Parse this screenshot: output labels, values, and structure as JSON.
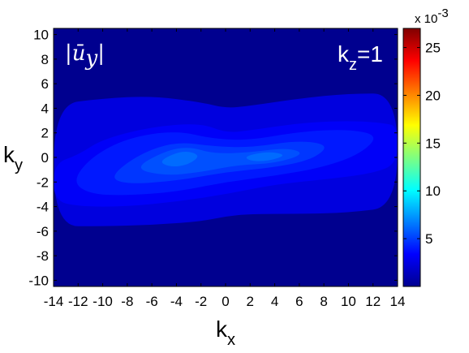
{
  "chart_data": {
    "type": "heatmap",
    "title": "",
    "annotation": {
      "field_main": "ū",
      "field_sub": "y",
      "kz_main": "k",
      "kz_sub": "z",
      "kz_value": "=1"
    },
    "xlabel": {
      "main": "k",
      "sub": "x"
    },
    "ylabel": {
      "main": "k",
      "sub": "y"
    },
    "xlim": [
      -14,
      14
    ],
    "ylim": [
      -10.5,
      10.5
    ],
    "x_ticks": [
      -14,
      -12,
      -10,
      -8,
      -6,
      -4,
      -2,
      0,
      2,
      4,
      6,
      8,
      10,
      12,
      14
    ],
    "x_tick_labels": [
      "-14",
      "-12",
      "-10",
      "-8",
      "-6",
      "-4",
      "-2",
      "0",
      "2",
      "4",
      "6",
      "8",
      "10",
      "12",
      "14"
    ],
    "y_ticks": [
      -10,
      -8,
      -6,
      -4,
      -2,
      0,
      2,
      4,
      6,
      8,
      10
    ],
    "y_tick_labels": [
      "-10",
      "-8",
      "-6",
      "-4",
      "-2",
      "0",
      "2",
      "4",
      "6",
      "8",
      "10"
    ],
    "colorbar": {
      "range": [
        0,
        0.027
      ],
      "ticks": [
        0.005,
        0.01,
        0.015,
        0.02,
        0.025
      ],
      "tick_labels": [
        "5",
        "10",
        "15",
        "20",
        "25"
      ],
      "exponent_label": "x 10",
      "exponent_power": "-3",
      "colormap": "jet"
    },
    "contour_levels": [
      {
        "level": 0.0025,
        "polygon": [
          [
            -14,
            4.3
          ],
          [
            -10,
            4.8
          ],
          [
            -6,
            5
          ],
          [
            -2,
            4.5
          ],
          [
            0,
            4
          ],
          [
            2,
            4.2
          ],
          [
            6,
            4.8
          ],
          [
            10,
            5.2
          ],
          [
            14,
            5.2
          ],
          [
            14,
            -4
          ],
          [
            10,
            -4.5
          ],
          [
            6,
            -4.6
          ],
          [
            2,
            -4.6
          ],
          [
            0,
            -4.8
          ],
          [
            -2,
            -5.2
          ],
          [
            -6,
            -5.5
          ],
          [
            -10,
            -5.6
          ],
          [
            -14,
            -5.6
          ]
        ]
      },
      {
        "level": 0.0032,
        "polygon": [
          [
            -14,
            -0.5
          ],
          [
            -12,
            0.2
          ],
          [
            -10,
            1.5
          ],
          [
            -6,
            2.5
          ],
          [
            -2,
            2.8
          ],
          [
            0,
            2
          ],
          [
            2,
            2.2
          ],
          [
            6,
            2.8
          ],
          [
            10,
            3
          ],
          [
            13,
            2.8
          ],
          [
            14,
            2.5
          ],
          [
            14,
            -0.5
          ],
          [
            12,
            -1.3
          ],
          [
            8,
            -1.8
          ],
          [
            4,
            -2.2
          ],
          [
            0,
            -3
          ],
          [
            -4,
            -3.6
          ],
          [
            -8,
            -4
          ],
          [
            -12,
            -4
          ],
          [
            -14,
            -3.5
          ]
        ]
      },
      {
        "level": 0.004,
        "polygon": [
          [
            -12.5,
            -2
          ],
          [
            -11,
            0
          ],
          [
            -8,
            1.6
          ],
          [
            -4,
            2.2
          ],
          [
            -1,
            1.5
          ],
          [
            2,
            1.4
          ],
          [
            6,
            2.1
          ],
          [
            10,
            2.3
          ],
          [
            12.5,
            1.8
          ],
          [
            11,
            0.3
          ],
          [
            8,
            -0.8
          ],
          [
            4,
            -1.5
          ],
          [
            0,
            -2
          ],
          [
            -4,
            -2.8
          ],
          [
            -8,
            -3.1
          ],
          [
            -11,
            -3
          ]
        ]
      },
      {
        "level": 0.0048,
        "polygon": [
          [
            -9.5,
            -1.6
          ],
          [
            -7,
            0.3
          ],
          [
            -4,
            1.3
          ],
          [
            -1,
            0.9
          ],
          [
            2,
            0.8
          ],
          [
            6,
            1.4
          ],
          [
            8.5,
            1
          ],
          [
            7,
            -0.2
          ],
          [
            4,
            -0.8
          ],
          [
            0,
            -1.2
          ],
          [
            -4,
            -1.9
          ],
          [
            -8,
            -2.2
          ]
        ]
      },
      {
        "level": 0.0055,
        "polygon": [
          [
            -7.5,
            -0.9
          ],
          [
            -5,
            0.5
          ],
          [
            -3,
            0.9
          ],
          [
            -1,
            0.3
          ],
          [
            2,
            0.4
          ],
          [
            5,
            0.8
          ],
          [
            6.5,
            0.3
          ],
          [
            4,
            -0.5
          ],
          [
            1,
            -0.6
          ],
          [
            -2,
            -1.2
          ],
          [
            -5,
            -1.5
          ]
        ]
      },
      {
        "level": 0.0062,
        "polygon": [
          [
            -5.5,
            -0.3
          ],
          [
            -3.5,
            0.6
          ],
          [
            -2,
            0.2
          ],
          [
            -3,
            -0.6
          ],
          [
            -4.5,
            -0.8
          ]
        ]
      },
      {
        "level": 0.0062,
        "polygon": [
          [
            1.5,
            0.1
          ],
          [
            3.5,
            0.5
          ],
          [
            5,
            0.2
          ],
          [
            3.5,
            -0.3
          ],
          [
            2,
            -0.3
          ]
        ]
      }
    ]
  }
}
